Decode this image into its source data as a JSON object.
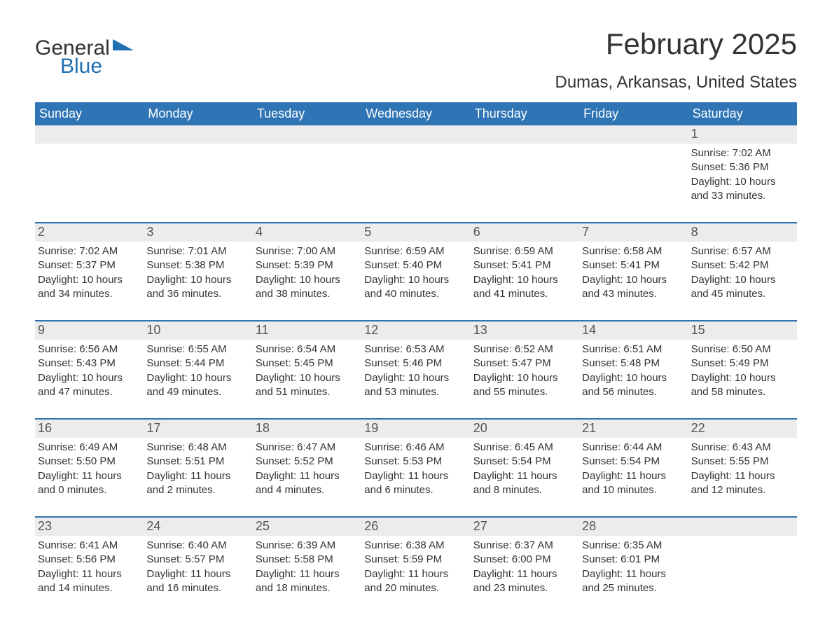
{
  "brand": {
    "general": "General",
    "blue": "Blue"
  },
  "title": "February 2025",
  "location": "Dumas, Arkansas, United States",
  "colors": {
    "header_bg": "#2f75b5",
    "header_text": "#ffffff",
    "week_divider": "#2f75b5",
    "daynum_bg": "#ececec",
    "brand_blue": "#1f6fb2",
    "text": "#333333",
    "page_bg": "#ffffff"
  },
  "days_of_week": [
    "Sunday",
    "Monday",
    "Tuesday",
    "Wednesday",
    "Thursday",
    "Friday",
    "Saturday"
  ],
  "layout": {
    "columns": 7,
    "rows": 5,
    "first_day_col": 6,
    "days_in_month": 28
  },
  "days": {
    "1": {
      "sunrise": "7:02 AM",
      "sunset": "5:36 PM",
      "daylight": "10 hours and 33 minutes."
    },
    "2": {
      "sunrise": "7:02 AM",
      "sunset": "5:37 PM",
      "daylight": "10 hours and 34 minutes."
    },
    "3": {
      "sunrise": "7:01 AM",
      "sunset": "5:38 PM",
      "daylight": "10 hours and 36 minutes."
    },
    "4": {
      "sunrise": "7:00 AM",
      "sunset": "5:39 PM",
      "daylight": "10 hours and 38 minutes."
    },
    "5": {
      "sunrise": "6:59 AM",
      "sunset": "5:40 PM",
      "daylight": "10 hours and 40 minutes."
    },
    "6": {
      "sunrise": "6:59 AM",
      "sunset": "5:41 PM",
      "daylight": "10 hours and 41 minutes."
    },
    "7": {
      "sunrise": "6:58 AM",
      "sunset": "5:41 PM",
      "daylight": "10 hours and 43 minutes."
    },
    "8": {
      "sunrise": "6:57 AM",
      "sunset": "5:42 PM",
      "daylight": "10 hours and 45 minutes."
    },
    "9": {
      "sunrise": "6:56 AM",
      "sunset": "5:43 PM",
      "daylight": "10 hours and 47 minutes."
    },
    "10": {
      "sunrise": "6:55 AM",
      "sunset": "5:44 PM",
      "daylight": "10 hours and 49 minutes."
    },
    "11": {
      "sunrise": "6:54 AM",
      "sunset": "5:45 PM",
      "daylight": "10 hours and 51 minutes."
    },
    "12": {
      "sunrise": "6:53 AM",
      "sunset": "5:46 PM",
      "daylight": "10 hours and 53 minutes."
    },
    "13": {
      "sunrise": "6:52 AM",
      "sunset": "5:47 PM",
      "daylight": "10 hours and 55 minutes."
    },
    "14": {
      "sunrise": "6:51 AM",
      "sunset": "5:48 PM",
      "daylight": "10 hours and 56 minutes."
    },
    "15": {
      "sunrise": "6:50 AM",
      "sunset": "5:49 PM",
      "daylight": "10 hours and 58 minutes."
    },
    "16": {
      "sunrise": "6:49 AM",
      "sunset": "5:50 PM",
      "daylight": "11 hours and 0 minutes."
    },
    "17": {
      "sunrise": "6:48 AM",
      "sunset": "5:51 PM",
      "daylight": "11 hours and 2 minutes."
    },
    "18": {
      "sunrise": "6:47 AM",
      "sunset": "5:52 PM",
      "daylight": "11 hours and 4 minutes."
    },
    "19": {
      "sunrise": "6:46 AM",
      "sunset": "5:53 PM",
      "daylight": "11 hours and 6 minutes."
    },
    "20": {
      "sunrise": "6:45 AM",
      "sunset": "5:54 PM",
      "daylight": "11 hours and 8 minutes."
    },
    "21": {
      "sunrise": "6:44 AM",
      "sunset": "5:54 PM",
      "daylight": "11 hours and 10 minutes."
    },
    "22": {
      "sunrise": "6:43 AM",
      "sunset": "5:55 PM",
      "daylight": "11 hours and 12 minutes."
    },
    "23": {
      "sunrise": "6:41 AM",
      "sunset": "5:56 PM",
      "daylight": "11 hours and 14 minutes."
    },
    "24": {
      "sunrise": "6:40 AM",
      "sunset": "5:57 PM",
      "daylight": "11 hours and 16 minutes."
    },
    "25": {
      "sunrise": "6:39 AM",
      "sunset": "5:58 PM",
      "daylight": "11 hours and 18 minutes."
    },
    "26": {
      "sunrise": "6:38 AM",
      "sunset": "5:59 PM",
      "daylight": "11 hours and 20 minutes."
    },
    "27": {
      "sunrise": "6:37 AM",
      "sunset": "6:00 PM",
      "daylight": "11 hours and 23 minutes."
    },
    "28": {
      "sunrise": "6:35 AM",
      "sunset": "6:01 PM",
      "daylight": "11 hours and 25 minutes."
    }
  },
  "labels": {
    "sunrise_prefix": "Sunrise: ",
    "sunset_prefix": "Sunset: ",
    "daylight_prefix": "Daylight: "
  }
}
